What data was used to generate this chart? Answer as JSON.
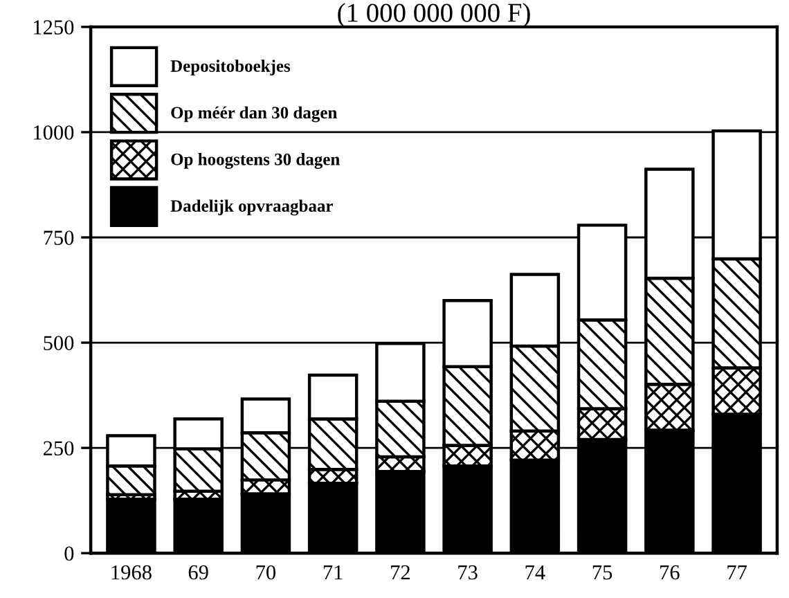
{
  "chart_data": {
    "type": "bar",
    "stacked": true,
    "title": "(1 000 000 000 F)",
    "categories": [
      "1968",
      "69",
      "70",
      "71",
      "72",
      "73",
      "74",
      "75",
      "76",
      "77"
    ],
    "series": [
      {
        "name": "Dadelijk opvraagbaar",
        "color": "#000000",
        "values": [
          128,
          128,
          141,
          166,
          194,
          207,
          221,
          270,
          292,
          330
        ]
      },
      {
        "name": "Op hoogstens 30 dagen",
        "color": "#000000",
        "values": [
          11,
          19,
          33,
          33,
          35,
          49,
          69,
          73,
          109,
          110
        ]
      },
      {
        "name": "Op méér dan 30 dagen",
        "color": "#000000",
        "values": [
          68,
          101,
          112,
          120,
          132,
          187,
          202,
          211,
          252,
          259
        ]
      },
      {
        "name": "Depositoboekjes",
        "color": "#ffffff",
        "values": [
          72,
          71,
          80,
          104,
          137,
          157,
          170,
          225,
          259,
          304
        ]
      }
    ],
    "ylim": [
      0,
      1250
    ],
    "yticks": [
      0,
      250,
      500,
      750,
      1000,
      1250
    ],
    "grid": "y",
    "legend": "top left"
  }
}
